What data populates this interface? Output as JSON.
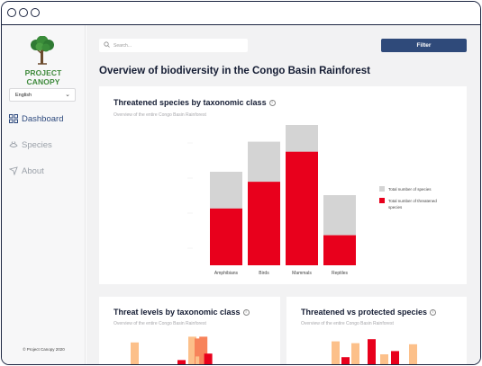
{
  "app": {
    "logo_text": "PROJECT CANOPY",
    "language": "English",
    "copyright": "© Project Canopy 2020"
  },
  "colors": {
    "brand_green": "#3f8a3c",
    "nav_active": "#2e4a7e",
    "filter_button": "#2f4a7a",
    "total_species": "#d4d4d4",
    "threatened_species": "#e8001c",
    "orange_light": "#fcc08a",
    "orange": "#f7835a"
  },
  "sidebar": {
    "items": [
      {
        "label": "Dashboard",
        "icon": "dashboard-grid-icon",
        "active": true
      },
      {
        "label": "Species",
        "icon": "species-icon",
        "active": false
      },
      {
        "label": "About",
        "icon": "about-icon",
        "active": false
      }
    ]
  },
  "toolbar": {
    "search_placeholder": "Search...",
    "filter_label": "Filter"
  },
  "page": {
    "title": "Overview of biodiversity in the Congo Basin Rainforest"
  },
  "cards": {
    "threatened": {
      "title": "Threatened species by taxonomic class",
      "subtitle": "Overview of the entire Congo Basin Rainforest"
    },
    "threat_levels": {
      "title": "Threat levels by taxonomic class",
      "subtitle": "Overview of the entire Congo Basin Rainforest"
    },
    "protected": {
      "title": "Threatened vs protected species",
      "subtitle": "Overview of the entire Congo Basin Rainforest"
    }
  },
  "chart_data": [
    {
      "type": "bar",
      "title": "Threatened species by taxonomic class",
      "subtitle": "Overview of the entire Congo Basin Rainforest",
      "categories": [
        "Amphibians",
        "Birds",
        "Mammals",
        "Reptiles"
      ],
      "series": [
        {
          "name": "Total number of species",
          "values": [
            280,
            370,
            420,
            210
          ],
          "color": "#d4d4d4"
        },
        {
          "name": "Total number of threatened species",
          "values": [
            170,
            250,
            340,
            90
          ],
          "color": "#e8001c"
        }
      ],
      "ylim": [
        0,
        420
      ],
      "stacking": "overlay",
      "grid": false,
      "legend": "right"
    },
    {
      "type": "bar",
      "title": "Threat levels by taxonomic class",
      "subtitle": "Overview of the entire Congo Basin Rainforest",
      "series": [
        {
          "values": [
            0.73,
            0.0,
            0.89,
            0.34
          ],
          "color": "#fcc08a"
        },
        {
          "values": [
            0.0,
            0.0,
            0.84,
            0.89
          ],
          "color": "#f7835a"
        },
        {
          "values": [
            0.0,
            0.24,
            0.0,
            0.42
          ],
          "color": "#e8001c"
        }
      ],
      "note": "cropped at bottom edge; values are fractions of the visible plot height"
    },
    {
      "type": "bar",
      "title": "Threatened vs protected species",
      "subtitle": "Overview of the entire Congo Basin Rainforest",
      "bars": [
        {
          "value": 0.76,
          "color": "#fcc08a"
        },
        {
          "value": 0.32,
          "color": "#e8001c"
        },
        {
          "value": 0.71,
          "color": "#fcc08a"
        },
        {
          "value": 0.82,
          "color": "#e8001c"
        },
        {
          "value": 0.4,
          "color": "#fcc08a"
        },
        {
          "value": 0.49,
          "color": "#e8001c"
        },
        {
          "value": 0.68,
          "color": "#fcc08a"
        }
      ],
      "note": "cropped at bottom edge; values are fractions of the visible plot height"
    }
  ]
}
